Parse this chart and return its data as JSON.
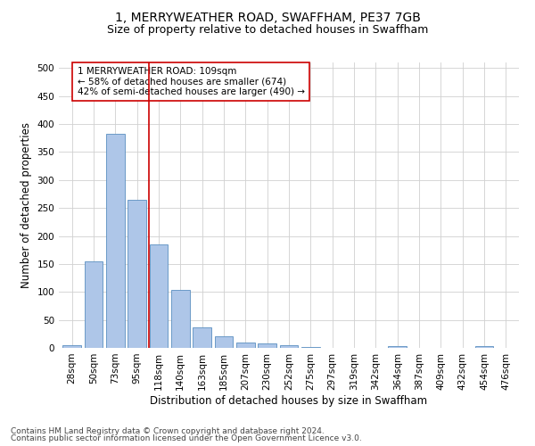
{
  "title": "1, MERRYWEATHER ROAD, SWAFFHAM, PE37 7GB",
  "subtitle": "Size of property relative to detached houses in Swaffham",
  "xlabel": "Distribution of detached houses by size in Swaffham",
  "ylabel": "Number of detached properties",
  "footer_line1": "Contains HM Land Registry data © Crown copyright and database right 2024.",
  "footer_line2": "Contains public sector information licensed under the Open Government Licence v3.0.",
  "categories": [
    "28sqm",
    "50sqm",
    "73sqm",
    "95sqm",
    "118sqm",
    "140sqm",
    "163sqm",
    "185sqm",
    "207sqm",
    "230sqm",
    "252sqm",
    "275sqm",
    "297sqm",
    "319sqm",
    "342sqm",
    "364sqm",
    "387sqm",
    "409sqm",
    "432sqm",
    "454sqm",
    "476sqm"
  ],
  "values": [
    5,
    155,
    383,
    265,
    185,
    103,
    36,
    20,
    10,
    8,
    5,
    2,
    0,
    0,
    0,
    3,
    0,
    0,
    0,
    3,
    0
  ],
  "bar_color": "#aec6e8",
  "bar_edge_color": "#5a8fc0",
  "grid_color": "#d0d0d0",
  "vline_x": 3.55,
  "vline_color": "#cc0000",
  "annotation_text": "1 MERRYWEATHER ROAD: 109sqm\n← 58% of detached houses are smaller (674)\n42% of semi-detached houses are larger (490) →",
  "annotation_box_color": "#ffffff",
  "annotation_box_edge_color": "#cc0000",
  "ylim": [
    0,
    510
  ],
  "yticks": [
    0,
    50,
    100,
    150,
    200,
    250,
    300,
    350,
    400,
    450,
    500
  ],
  "title_fontsize": 10,
  "subtitle_fontsize": 9,
  "xlabel_fontsize": 8.5,
  "ylabel_fontsize": 8.5,
  "tick_fontsize": 7.5,
  "annotation_fontsize": 7.5,
  "footer_fontsize": 6.5
}
